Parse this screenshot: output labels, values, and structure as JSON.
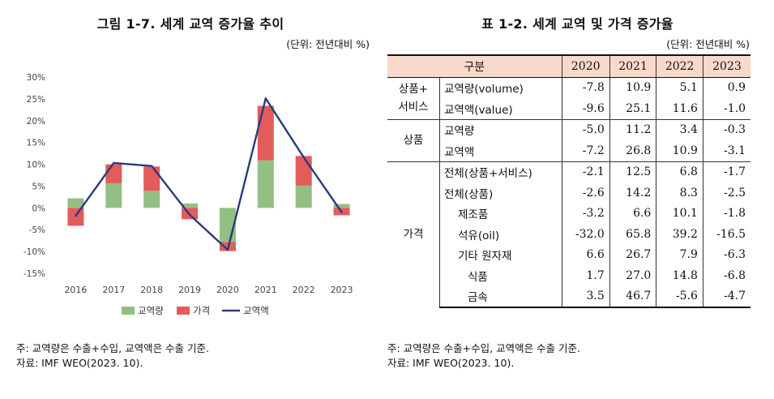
{
  "figure": {
    "title": "그림 1-7. 세계 교역 증가율 추이",
    "unit": "(단위: 전년대비 %)",
    "note": "주: 교역량은 수출+수입, 교역액은 수출 기준.",
    "source": "자료: IMF WEO(2023. 10)."
  },
  "table": {
    "title": "표 1-2. 세계 교역 및 가격 증가율",
    "unit": "(단위: 전년대비 %)",
    "header": [
      "구분",
      "2020",
      "2021",
      "2022",
      "2023"
    ],
    "groups": [
      {
        "category": "상품+\n서비스",
        "rows": [
          {
            "label": "교역량(volume)",
            "values": [
              "-7.8",
              "10.9",
              "5.1",
              "0.9"
            ]
          },
          {
            "label": "교역액(value)",
            "values": [
              "-9.6",
              "25.1",
              "11.6",
              "-1.0"
            ]
          }
        ]
      },
      {
        "category": "상품",
        "rows": [
          {
            "label": "교역량",
            "values": [
              "-5.0",
              "11.2",
              "3.4",
              "-0.3"
            ]
          },
          {
            "label": "교역액",
            "values": [
              "-7.2",
              "26.8",
              "10.9",
              "-3.1"
            ]
          }
        ]
      },
      {
        "category": "가격",
        "rows": [
          {
            "label": "전체(상품+서비스)",
            "indent": 0,
            "values": [
              "-2.1",
              "12.5",
              "6.8",
              "-1.7"
            ]
          },
          {
            "label": "전체(상품)",
            "indent": 0,
            "values": [
              "-2.6",
              "14.2",
              "8.3",
              "-2.5"
            ]
          },
          {
            "label": "제조품",
            "indent": 1,
            "values": [
              "-3.2",
              "6.6",
              "10.1",
              "-1.8"
            ]
          },
          {
            "label": "석유(oil)",
            "indent": 1,
            "values": [
              "-32.0",
              "65.8",
              "39.2",
              "-16.5"
            ]
          },
          {
            "label": "기타 원자재",
            "indent": 1,
            "values": [
              "6.6",
              "26.7",
              "7.9",
              "-6.3"
            ]
          },
          {
            "label": "식품",
            "indent": 2,
            "values": [
              "1.7",
              "27.0",
              "14.8",
              "-6.8"
            ]
          },
          {
            "label": "금속",
            "indent": 2,
            "values": [
              "3.5",
              "46.7",
              "-5.6",
              "-4.7"
            ]
          }
        ]
      }
    ],
    "note": "주: 교역량은 수출+수입, 교역액은 수출 기준.",
    "source": "자료: IMF WEO(2023. 10)."
  },
  "chart_data": {
    "type": "bar",
    "stacked": true,
    "categories": [
      "2016",
      "2017",
      "2018",
      "2019",
      "2020",
      "2021",
      "2022",
      "2023"
    ],
    "yticks": [
      "30%",
      "25%",
      "20%",
      "15%",
      "10%",
      "5%",
      "0%",
      "-5%",
      "-10%",
      "-15%"
    ],
    "ylim": [
      -15,
      30
    ],
    "series": [
      {
        "name": "교역량",
        "type": "bar",
        "color": "#93bf85",
        "values": [
          2.2,
          5.6,
          3.9,
          1.0,
          -7.8,
          10.9,
          5.1,
          0.9
        ]
      },
      {
        "name": "가격",
        "type": "bar",
        "color": "#e35c5c",
        "values": [
          -4.1,
          4.4,
          5.6,
          -2.6,
          -2.1,
          12.5,
          6.8,
          -1.7
        ]
      },
      {
        "name": "교역액",
        "type": "line",
        "color": "#2a3b7c",
        "values": [
          -1.8,
          10.3,
          9.6,
          -1.6,
          -9.6,
          25.1,
          11.6,
          -1.0
        ]
      }
    ],
    "legend_position": "bottom",
    "grid": false
  }
}
